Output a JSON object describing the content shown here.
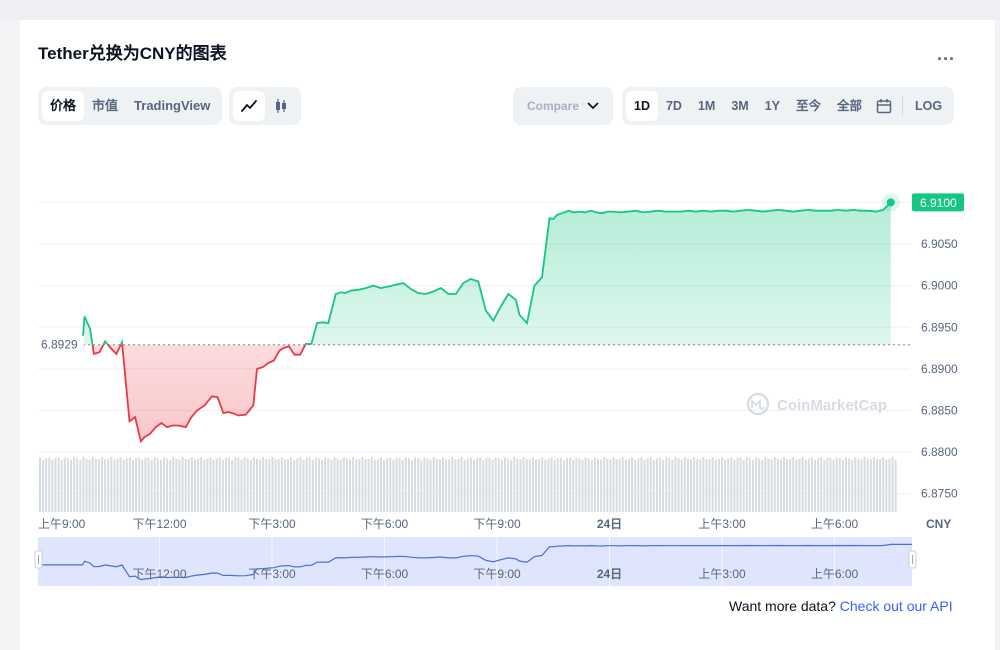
{
  "title": "Tether兑换为CNY的图表",
  "more_label": "...",
  "type_tabs": [
    {
      "label": "价格",
      "active": true
    },
    {
      "label": "市值",
      "active": false
    },
    {
      "label": "TradingView",
      "active": false
    }
  ],
  "mode_icons": [
    {
      "name": "line-chart-icon",
      "active": true
    },
    {
      "name": "candlestick-icon",
      "active": false
    }
  ],
  "compare": {
    "placeholder": "Compare with"
  },
  "ranges": [
    {
      "label": "1D",
      "active": true
    },
    {
      "label": "7D",
      "active": false
    },
    {
      "label": "1M",
      "active": false
    },
    {
      "label": "3M",
      "active": false
    },
    {
      "label": "1Y",
      "active": false
    },
    {
      "label": "至今",
      "active": false
    },
    {
      "label": "全部",
      "active": false
    }
  ],
  "log_label": "LOG",
  "footer": {
    "text": "Want more data? ",
    "link": "Check out our API"
  },
  "watermark": "CoinMarketCap",
  "colors": {
    "up": "#16c784",
    "down": "#ea3943",
    "nav_line": "#4a6ee0",
    "nav_fill": "#dfe5fc"
  },
  "chart_data": {
    "type": "line",
    "open_price": 6.8929,
    "open_label": "6.8929",
    "current_price": 6.91,
    "current_label": "6.9100",
    "ylim": [
      6.8728,
      6.9163
    ],
    "yticks": [
      "6.8750",
      "6.8800",
      "6.8850",
      "6.8900",
      "6.8950",
      "6.9000",
      "6.9050"
    ],
    "ytick_values": [
      6.875,
      6.88,
      6.885,
      6.89,
      6.895,
      6.9,
      6.905
    ],
    "xlim": [
      0,
      23.5
    ],
    "xtick_labels": [
      "上午9:00",
      "下午12:00",
      "下午3:00",
      "下午6:00",
      "下午9:00",
      "24日",
      "上午3:00",
      "上午6:00"
    ],
    "xtick_values": [
      0,
      3,
      6,
      9,
      12,
      15,
      18,
      21
    ],
    "x_unit_label": "CNY",
    "series": [
      {
        "hours": [
          0.95,
          1.0,
          1.15,
          1.25,
          1.4,
          1.55,
          1.7,
          1.85,
          2.0,
          2.2,
          2.35,
          2.5,
          2.6,
          2.75,
          2.9,
          3.05,
          3.2,
          3.35,
          3.5,
          3.7,
          3.85,
          4.0,
          4.2,
          4.4,
          4.55,
          4.7,
          4.85,
          5.0,
          5.1,
          5.3,
          5.5,
          5.6,
          5.75,
          5.9,
          6.05,
          6.2,
          6.3,
          6.45,
          6.6,
          6.75,
          6.9,
          7.05,
          7.2,
          7.35,
          7.5,
          7.7,
          7.85,
          7.95,
          8.1,
          8.3,
          8.5,
          8.7,
          8.9,
          9.1,
          9.3,
          9.5,
          9.7,
          9.9,
          10.1,
          10.3,
          10.5,
          10.7,
          10.9,
          11.1,
          11.3,
          11.5,
          11.7,
          11.9,
          12.1,
          12.3,
          12.5,
          12.6,
          12.8,
          13.0,
          13.2,
          13.4,
          13.5,
          13.6,
          13.8,
          13.9,
          14.05,
          14.2,
          14.35,
          14.5,
          14.65,
          14.8,
          14.95,
          15.1,
          15.3,
          15.5,
          15.7,
          15.9,
          16.1,
          16.3,
          16.5,
          16.7,
          16.9,
          17.1,
          17.3,
          17.5,
          17.7,
          17.9,
          18.1,
          18.3,
          18.5,
          18.7,
          18.9,
          19.1,
          19.3,
          19.5,
          19.7,
          19.9,
          20.1,
          20.3,
          20.5,
          20.7,
          20.9,
          21.1,
          21.3,
          21.5,
          21.7,
          21.9,
          22.1,
          22.3,
          22.5
        ],
        "values": [
          6.8933,
          6.8963,
          6.8948,
          6.8918,
          6.892,
          6.8933,
          6.8925,
          6.8918,
          6.8932,
          6.8837,
          6.8842,
          6.8813,
          6.8818,
          6.8822,
          6.883,
          6.8835,
          6.883,
          6.8832,
          6.8832,
          6.883,
          6.8842,
          6.885,
          6.8856,
          6.8867,
          6.8866,
          6.8847,
          6.8848,
          6.8846,
          6.8844,
          6.8845,
          6.8856,
          6.89,
          6.8902,
          6.8907,
          6.891,
          6.8922,
          6.8925,
          6.8927,
          6.8917,
          6.8917,
          6.893,
          6.893,
          6.8955,
          6.8956,
          6.8955,
          6.899,
          6.8992,
          6.8991,
          6.8994,
          6.8995,
          6.8997,
          6.9,
          6.8997,
          6.8999,
          6.9001,
          6.9003,
          6.8996,
          6.8991,
          6.899,
          6.8993,
          6.8997,
          6.899,
          6.899,
          6.9003,
          6.9008,
          6.9005,
          6.897,
          6.8958,
          6.8975,
          6.899,
          6.8983,
          6.8965,
          6.8955,
          6.9,
          6.901,
          6.9081,
          6.908,
          6.9085,
          6.9088,
          6.909,
          6.9088,
          6.9089,
          6.9088,
          6.909,
          6.9088,
          6.9087,
          6.9089,
          6.9089,
          6.9088,
          6.9089,
          6.909,
          6.9088,
          6.9089,
          6.909,
          6.9089,
          6.9089,
          6.9089,
          6.909,
          6.9089,
          6.909,
          6.9089,
          6.909,
          6.909,
          6.9089,
          6.909,
          6.9091,
          6.909,
          6.9089,
          6.909,
          6.9091,
          6.909,
          6.9089,
          6.909,
          6.9091,
          6.909,
          6.909,
          6.909,
          6.9091,
          6.909,
          6.9091,
          6.909,
          6.909,
          6.9089,
          6.9091,
          6.91
        ]
      }
    ]
  }
}
